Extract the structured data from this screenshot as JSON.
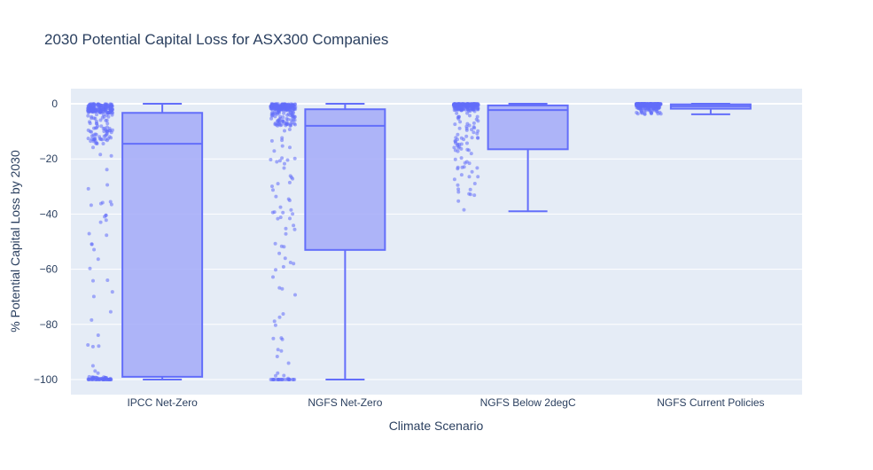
{
  "chart_data": {
    "type": "box",
    "title": "2030 Potential Capital Loss for ASX300 Companies",
    "xlabel": "Climate Scenario",
    "ylabel": "% Potential Capital Loss by 2030",
    "ylim": [
      -105,
      5
    ],
    "yticks": [
      0,
      -20,
      -40,
      -60,
      -80,
      -100
    ],
    "grid": true,
    "boxpoints": "all",
    "colors": {
      "box_line": "#636efa",
      "box_fill": "#a3aaf8",
      "points": "#636efa",
      "plot_bg": "#e5ecf6",
      "grid": "#ffffff",
      "text": "#2a3f5f"
    },
    "categories": [
      "IPCC Net-Zero",
      "NGFS Net-Zero",
      "NGFS Below 2degC",
      "NGFS Current Policies"
    ],
    "boxes": [
      {
        "category": "IPCC Net-Zero",
        "lower_fence": -100,
        "q1": -99,
        "median": -14.5,
        "q3": -3.3,
        "upper_fence": 0
      },
      {
        "category": "NGFS Net-Zero",
        "lower_fence": -100,
        "q1": -53,
        "median": -8,
        "q3": -2,
        "upper_fence": 0
      },
      {
        "category": "NGFS Below 2degC",
        "lower_fence": -39,
        "q1": -16.5,
        "median": -2.3,
        "q3": -0.6,
        "upper_fence": 0
      },
      {
        "category": "NGFS Current Policies",
        "lower_fence": -3.8,
        "q1": -1.8,
        "median": -0.9,
        "q3": -0.2,
        "upper_fence": 0
      }
    ]
  }
}
